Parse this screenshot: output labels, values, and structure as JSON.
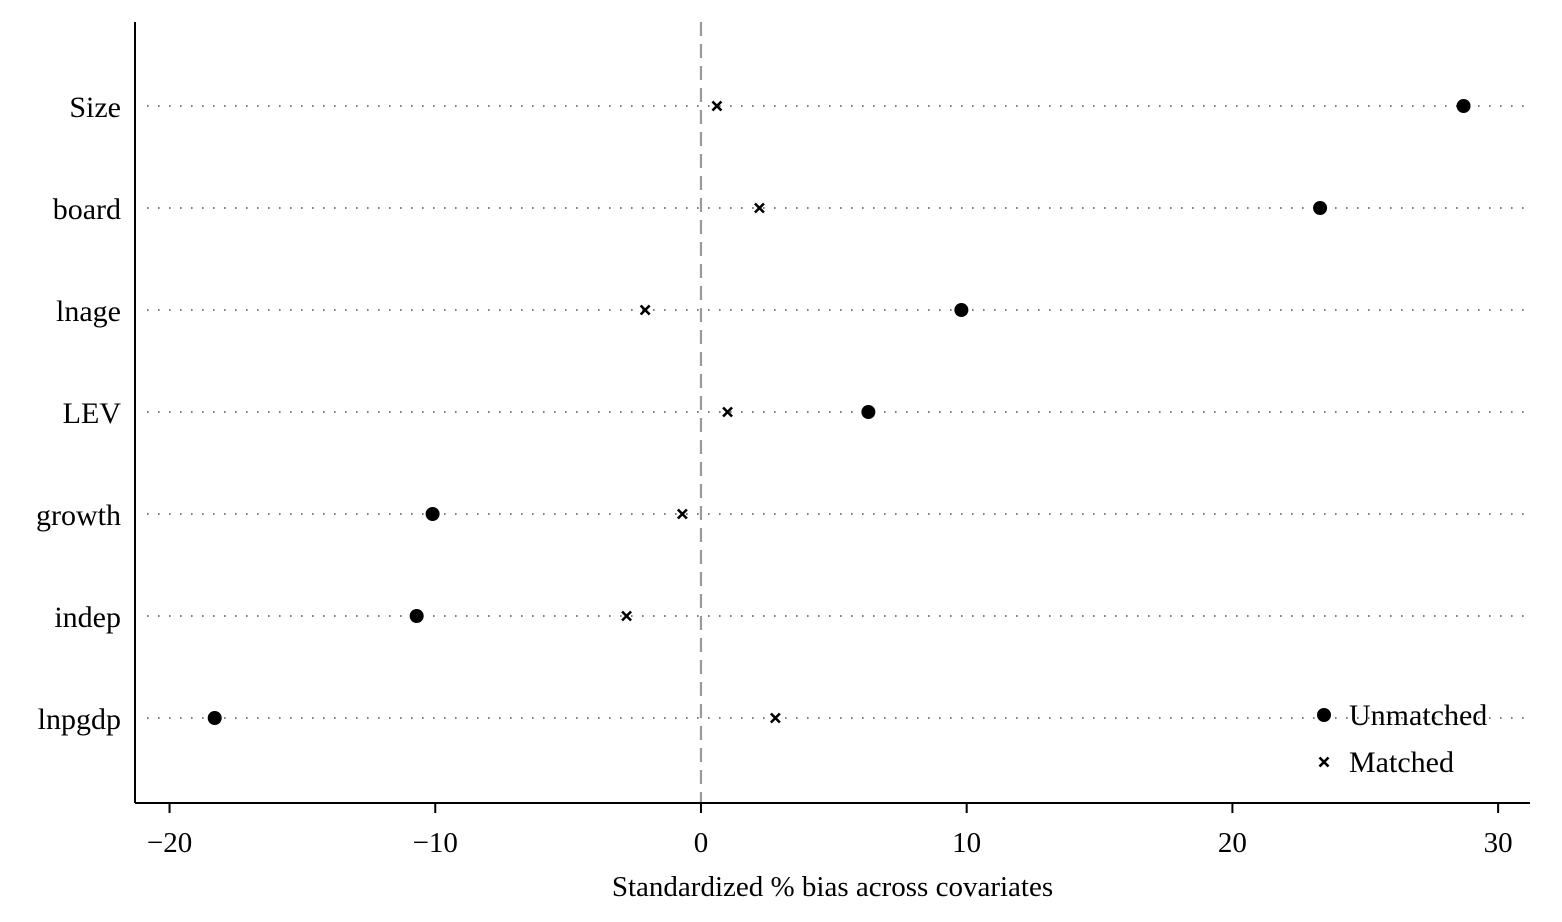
{
  "chart_data": {
    "type": "scatter",
    "xlabel": "Standardized % bias across covariates",
    "categories": [
      "Size",
      "board",
      "lnage",
      "LEV",
      "growth",
      "indep",
      "lnpgdp"
    ],
    "series": [
      {
        "name": "Unmatched",
        "marker": "circle",
        "values": [
          28.7,
          23.3,
          9.8,
          6.3,
          -10.1,
          -10.7,
          -18.3
        ]
      },
      {
        "name": "Matched",
        "marker": "x",
        "values": [
          0.6,
          2.2,
          -2.1,
          1.0,
          -0.7,
          -2.8,
          2.8
        ]
      }
    ],
    "xlim": [
      -21.3,
      31.2
    ],
    "xticks": [
      -20,
      -10,
      0,
      10,
      20,
      30
    ],
    "xtick_labels": [
      "−20",
      "−10",
      "0",
      "10",
      "20",
      "30"
    ],
    "reference_line": 0,
    "grid": "dotted horizontal per category",
    "legend_placement": "bottom-right",
    "colors": {
      "marker": "#000000",
      "reference_line": "#999999",
      "grid": "#555555"
    }
  }
}
